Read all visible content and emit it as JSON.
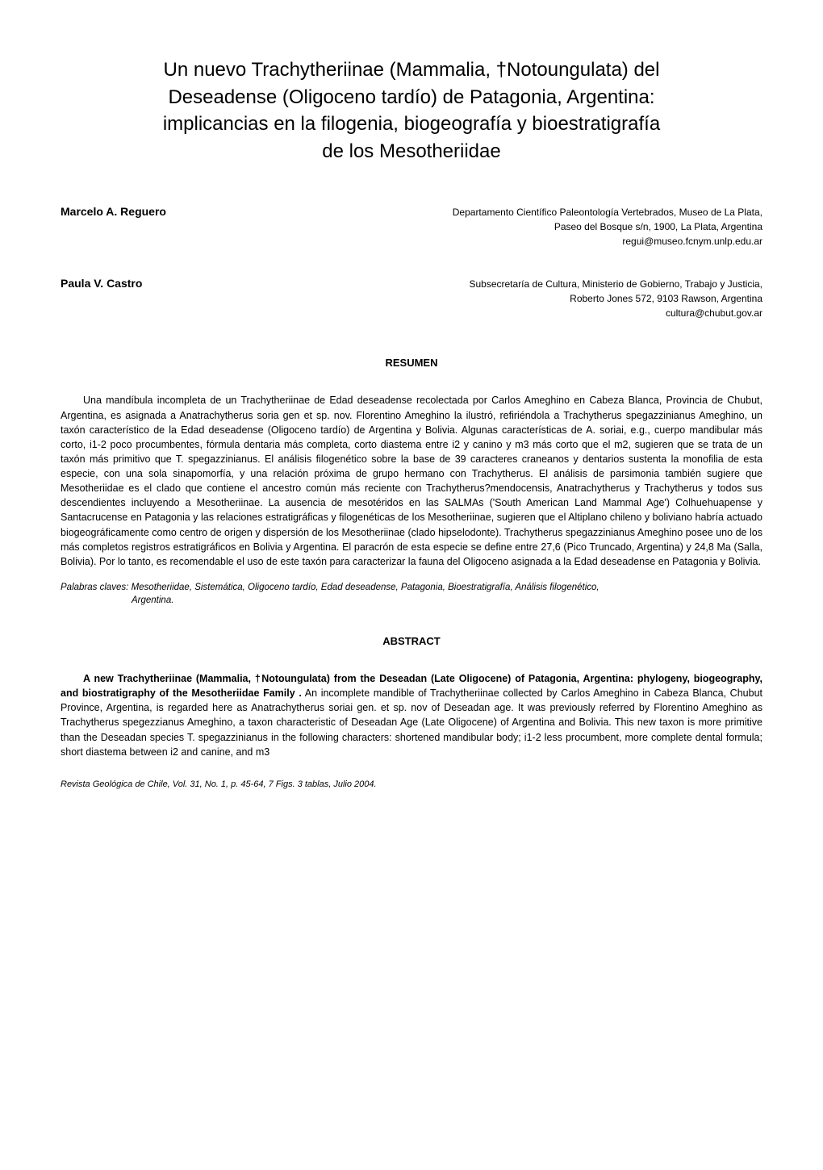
{
  "title_line1": "Un nuevo Trachytheriinae (Mammalia, †Notoungulata) del",
  "title_line2": "Deseadense (Oligoceno tardío) de Patagonia, Argentina:",
  "title_line3": "implicancias en la filogenia, biogeografía y bioestratigrafía",
  "title_line4": "de los Mesotheriidae",
  "authors": [
    {
      "name": "Marcelo A. Reguero",
      "affil_line1": "Departamento Científico Paleontología Vertebrados, Museo de La Plata,",
      "affil_line2": "Paseo del Bosque s/n, 1900, La Plata, Argentina",
      "affil_line3": "regui@museo.fcnym.unlp.edu.ar"
    },
    {
      "name": "Paula V. Castro",
      "affil_line1": "Subsecretaría de Cultura, Ministerio de Gobierno, Trabajo y Justicia,",
      "affil_line2": "Roberto Jones 572, 9103 Rawson, Argentina",
      "affil_line3": "cultura@chubut.gov.ar"
    }
  ],
  "resumen_heading": "RESUMEN",
  "resumen_body": "Una mandíbula incompleta de un Trachytheriinae de Edad deseadense recolectada por Carlos Ameghino en Cabeza Blanca, Provincia de Chubut, Argentina, es asignada a Anatrachytherus soria gen et sp. nov. Florentino Ameghino la ilustró, refiriéndola a Trachytherus spegazzinianus Ameghino, un taxón característico de la Edad deseadense (Oligoceno tardío) de Argentina y Bolivia. Algunas características de A. soriai, e.g., cuerpo mandibular más corto, i1-2 poco procumbentes, fórmula dentaria más completa, corto diastema entre i2 y canino y m3 más corto que el m2, sugieren que se trata de un taxón más primitivo que T. spegazzinianus. El análisis filogenético sobre la base de 39 caracteres craneanos y dentarios sustenta la monofilia de esta especie, con una sola sinapomorfía, y una relación próxima de grupo hermano con Trachytherus. El análisis de parsimonia también sugiere que Mesotheriidae es el clado que contiene el ancestro común más reciente con Trachytherus?mendocensis, Anatrachytherus y Trachytherus y todos sus descendientes incluyendo a Mesotheriinae. La ausencia de mesotéridos en las SALMAs ('South American Land Mammal Age') Colhuehuapense y Santacrucense en Patagonia y las relaciones estratigráficas y filogenéticas de los Mesotheriinae, sugieren que el Altiplano chileno y boliviano habría actuado biogeográficamente como centro de origen y dispersión de los Mesotheriinae (clado hipselodonte). Trachytherus spegazzinianus Ameghino posee uno de los más completos registros estratigráficos en Bolivia y Argentina. El paracrón de esta especie se define entre 27,6 (Pico Truncado, Argentina) y 24,8 Ma (Salla, Bolivia). Por lo tanto, es recomendable el uso de este taxón para caracterizar la fauna del Oligoceno asignada a la Edad deseadense en Patagonia y Bolivia.",
  "keywords_label": "Palabras claves: ",
  "keywords_text": "Mesotheriidae, Sistemática, Oligoceno tardío, Edad deseadense, Patagonia, Bioestratigrafía, Análisis filogenético,",
  "keywords_text2": "Argentina.",
  "abstract_heading": "ABSTRACT",
  "abstract_lead": "A new Trachytheriinae (Mammalia, †Notoungulata) from the Deseadan (Late Oligocene) of Patagonia, Argentina: phylogeny, biogeography, and biostratigraphy of the Mesotheriidae Family .",
  "abstract_body": " An incomplete mandible of Trachytheriinae collected by Carlos Ameghino in Cabeza Blanca, Chubut Province, Argentina, is regarded here as Anatrachytherus soriai gen. et sp. nov of Deseadan age. It was previously referred by Florentino Ameghino as Trachytherus spegezzianus Ameghino, a taxon characteristic of Deseadan Age (Late Oligocene) of Argentina and Bolivia. This new taxon is more primitive than the Deseadan species T. spegazzinianus in the following characters: shortened mandibular body; i1-2 less procumbent, more complete dental formula; short diastema between i2 and canine, and m3",
  "footer": "Revista Geológica de Chile, Vol. 31, No. 1, p. 45-64, 7 Figs. 3 tablas, Julio 2004."
}
